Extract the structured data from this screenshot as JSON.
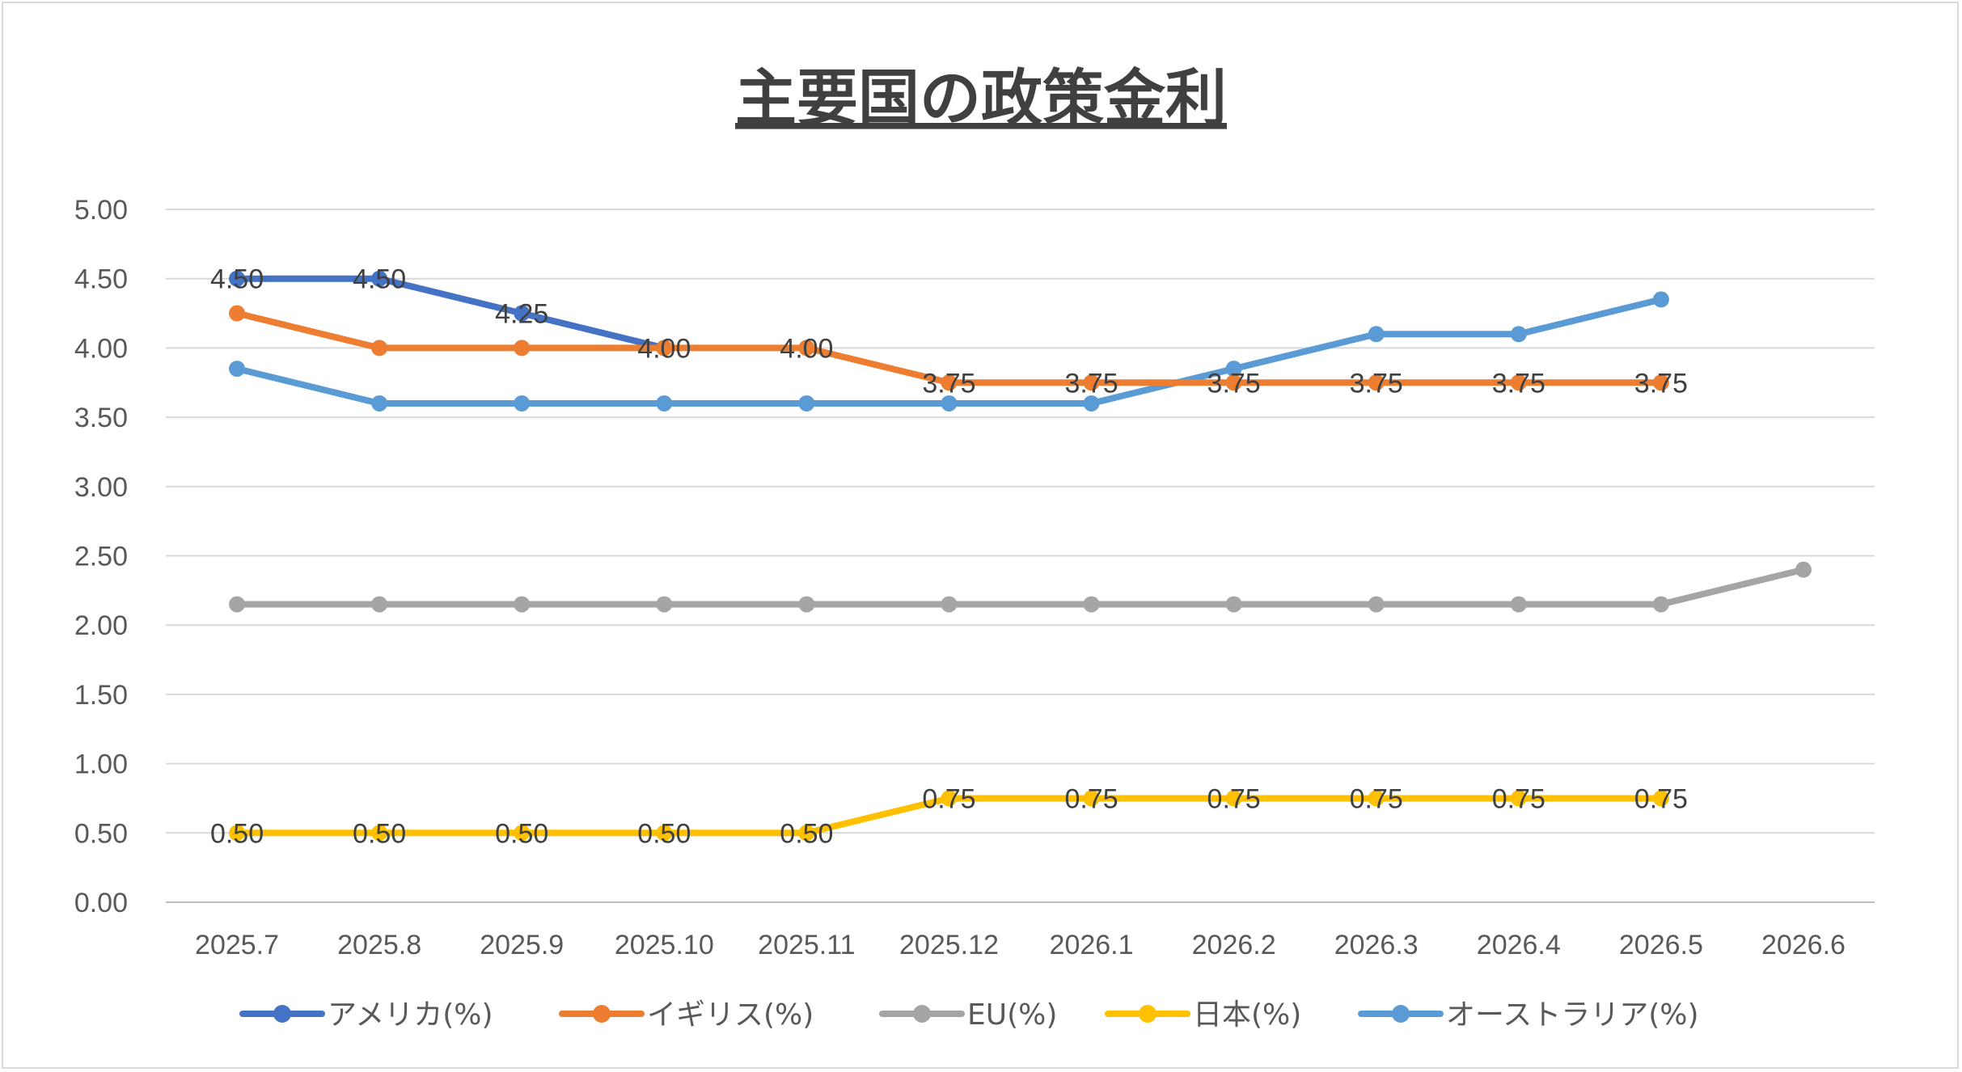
{
  "chart_data": {
    "type": "line",
    "title": "主要国の政策金利",
    "xlabel": "",
    "ylabel": "",
    "categories": [
      "2025.7",
      "2025.8",
      "2025.9",
      "2025.10",
      "2025.11",
      "2025.12",
      "2026.1",
      "2026.2",
      "2026.3",
      "2026.4",
      "2026.5",
      "2026.6"
    ],
    "ylim": [
      0,
      5
    ],
    "ytick_labels": [
      "0.00",
      "0.50",
      "1.00",
      "1.50",
      "2.00",
      "2.50",
      "3.00",
      "3.50",
      "4.00",
      "4.50",
      "5.00"
    ],
    "grid": true,
    "legend_position": "bottom",
    "series": [
      {
        "name": "アメリカ(%)",
        "color": "#4472C4",
        "values": [
          4.5,
          4.5,
          4.25,
          4.0,
          null,
          null,
          null,
          null,
          null,
          null,
          null,
          null
        ],
        "labels": true
      },
      {
        "name": "イギリス(%)",
        "color": "#ED7D31",
        "values": [
          4.25,
          4.0,
          4.0,
          4.0,
          4.0,
          3.75,
          3.75,
          3.75,
          3.75,
          3.75,
          3.75,
          null
        ],
        "labels": false
      },
      {
        "name": "EU(%)",
        "color": "#A5A5A5",
        "values": [
          2.15,
          2.15,
          2.15,
          2.15,
          2.15,
          2.15,
          2.15,
          2.15,
          2.15,
          2.15,
          2.15,
          2.4
        ],
        "labels": false
      },
      {
        "name": "日本(%)",
        "color": "#FFC000",
        "values": [
          0.5,
          0.5,
          0.5,
          0.5,
          0.5,
          0.75,
          0.75,
          0.75,
          0.75,
          0.75,
          0.75,
          null
        ],
        "labels": true
      },
      {
        "name": "オーストラリア(%)",
        "color": "#5B9BD5",
        "values": [
          3.85,
          3.6,
          3.6,
          3.6,
          3.6,
          3.6,
          3.6,
          3.85,
          4.1,
          4.1,
          4.35,
          null
        ],
        "labels": false
      }
    ],
    "data_labels": [
      {
        "series": 0,
        "index": 0,
        "text": "4.50"
      },
      {
        "series": 0,
        "index": 1,
        "text": "4.50"
      },
      {
        "series": 0,
        "index": 2,
        "text": "4.25"
      },
      {
        "series": 0,
        "index": 3,
        "text": "4.00"
      },
      {
        "series": 1,
        "index": 4,
        "text": "4.00"
      },
      {
        "series": 1,
        "index": 5,
        "text": "3.75"
      },
      {
        "series": 1,
        "index": 6,
        "text": "3.75"
      },
      {
        "series": 1,
        "index": 7,
        "text": "3.75"
      },
      {
        "series": 1,
        "index": 8,
        "text": "3.75"
      },
      {
        "series": 1,
        "index": 9,
        "text": "3.75"
      },
      {
        "series": 1,
        "index": 10,
        "text": "3.75"
      },
      {
        "series": 3,
        "index": 0,
        "text": "0.50"
      },
      {
        "series": 3,
        "index": 1,
        "text": "0.50"
      },
      {
        "series": 3,
        "index": 2,
        "text": "0.50"
      },
      {
        "series": 3,
        "index": 3,
        "text": "0.50"
      },
      {
        "series": 3,
        "index": 4,
        "text": "0.50"
      },
      {
        "series": 3,
        "index": 5,
        "text": "0.75"
      },
      {
        "series": 3,
        "index": 6,
        "text": "0.75"
      },
      {
        "series": 3,
        "index": 7,
        "text": "0.75"
      },
      {
        "series": 3,
        "index": 8,
        "text": "0.75"
      },
      {
        "series": 3,
        "index": 9,
        "text": "0.75"
      },
      {
        "series": 3,
        "index": 10,
        "text": "0.75"
      }
    ]
  }
}
